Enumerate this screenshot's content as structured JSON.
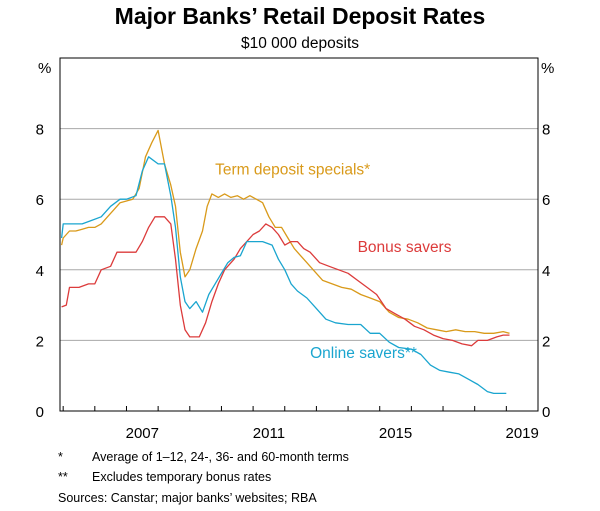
{
  "chart_data": {
    "type": "line",
    "title": "Major Banks’ Retail Deposit Rates",
    "subtitle": "$10 000 deposits",
    "y_unit_left": "%",
    "y_unit_right": "%",
    "xlim": [
      2004.9,
      2020.0
    ],
    "ylim": [
      0,
      10
    ],
    "y_ticks": [
      0,
      2,
      4,
      6,
      8
    ],
    "x_ticks": [
      "2007",
      "2011",
      "2015",
      "2019"
    ],
    "grid": true,
    "series": [
      {
        "name": "Term deposit specials*",
        "color": "#d99a1a",
        "points": [
          [
            2004.95,
            4.7
          ],
          [
            2005.0,
            4.9
          ],
          [
            2005.2,
            5.1
          ],
          [
            2005.4,
            5.1
          ],
          [
            2005.6,
            5.15
          ],
          [
            2005.8,
            5.2
          ],
          [
            2006.0,
            5.2
          ],
          [
            2006.2,
            5.3
          ],
          [
            2006.4,
            5.5
          ],
          [
            2006.6,
            5.7
          ],
          [
            2006.8,
            5.9
          ],
          [
            2007.0,
            5.95
          ],
          [
            2007.2,
            6.0
          ],
          [
            2007.4,
            6.3
          ],
          [
            2007.6,
            7.2
          ],
          [
            2007.8,
            7.6
          ],
          [
            2008.0,
            7.95
          ],
          [
            2008.2,
            7.0
          ],
          [
            2008.4,
            6.4
          ],
          [
            2008.55,
            5.8
          ],
          [
            2008.7,
            4.5
          ],
          [
            2008.85,
            3.8
          ],
          [
            2009.0,
            4.0
          ],
          [
            2009.2,
            4.6
          ],
          [
            2009.4,
            5.1
          ],
          [
            2009.55,
            5.8
          ],
          [
            2009.7,
            6.15
          ],
          [
            2009.9,
            6.05
          ],
          [
            2010.1,
            6.15
          ],
          [
            2010.3,
            6.05
          ],
          [
            2010.5,
            6.1
          ],
          [
            2010.7,
            6.0
          ],
          [
            2010.9,
            6.1
          ],
          [
            2011.1,
            6.0
          ],
          [
            2011.3,
            5.9
          ],
          [
            2011.5,
            5.5
          ],
          [
            2011.7,
            5.2
          ],
          [
            2011.9,
            5.2
          ],
          [
            2012.1,
            4.9
          ],
          [
            2012.3,
            4.6
          ],
          [
            2012.5,
            4.4
          ],
          [
            2012.7,
            4.2
          ],
          [
            2012.9,
            4.0
          ],
          [
            2013.2,
            3.7
          ],
          [
            2013.5,
            3.6
          ],
          [
            2013.8,
            3.5
          ],
          [
            2014.1,
            3.45
          ],
          [
            2014.4,
            3.3
          ],
          [
            2014.7,
            3.2
          ],
          [
            2015.0,
            3.1
          ],
          [
            2015.3,
            2.8
          ],
          [
            2015.6,
            2.65
          ],
          [
            2015.9,
            2.6
          ],
          [
            2016.2,
            2.5
          ],
          [
            2016.5,
            2.35
          ],
          [
            2016.8,
            2.3
          ],
          [
            2017.1,
            2.25
          ],
          [
            2017.4,
            2.3
          ],
          [
            2017.7,
            2.25
          ],
          [
            2018.0,
            2.25
          ],
          [
            2018.3,
            2.2
          ],
          [
            2018.6,
            2.2
          ],
          [
            2018.9,
            2.25
          ],
          [
            2019.1,
            2.2
          ]
        ]
      },
      {
        "name": "Bonus savers",
        "color": "#dc3b3b",
        "points": [
          [
            2004.95,
            2.95
          ],
          [
            2005.1,
            3.0
          ],
          [
            2005.2,
            3.5
          ],
          [
            2005.5,
            3.5
          ],
          [
            2005.8,
            3.6
          ],
          [
            2006.0,
            3.6
          ],
          [
            2006.2,
            4.0
          ],
          [
            2006.5,
            4.1
          ],
          [
            2006.7,
            4.5
          ],
          [
            2007.0,
            4.5
          ],
          [
            2007.3,
            4.5
          ],
          [
            2007.5,
            4.8
          ],
          [
            2007.7,
            5.2
          ],
          [
            2007.9,
            5.5
          ],
          [
            2008.2,
            5.5
          ],
          [
            2008.4,
            5.3
          ],
          [
            2008.55,
            4.3
          ],
          [
            2008.7,
            3.0
          ],
          [
            2008.85,
            2.3
          ],
          [
            2009.0,
            2.1
          ],
          [
            2009.3,
            2.1
          ],
          [
            2009.5,
            2.5
          ],
          [
            2009.7,
            3.1
          ],
          [
            2009.9,
            3.6
          ],
          [
            2010.1,
            4.0
          ],
          [
            2010.4,
            4.3
          ],
          [
            2010.6,
            4.6
          ],
          [
            2010.8,
            4.8
          ],
          [
            2011.0,
            5.0
          ],
          [
            2011.2,
            5.1
          ],
          [
            2011.4,
            5.3
          ],
          [
            2011.6,
            5.2
          ],
          [
            2011.8,
            5.0
          ],
          [
            2012.0,
            4.7
          ],
          [
            2012.2,
            4.8
          ],
          [
            2012.4,
            4.8
          ],
          [
            2012.6,
            4.6
          ],
          [
            2012.8,
            4.5
          ],
          [
            2013.1,
            4.2
          ],
          [
            2013.4,
            4.1
          ],
          [
            2013.7,
            4.0
          ],
          [
            2014.0,
            3.9
          ],
          [
            2014.3,
            3.7
          ],
          [
            2014.6,
            3.5
          ],
          [
            2014.9,
            3.3
          ],
          [
            2015.2,
            2.9
          ],
          [
            2015.5,
            2.75
          ],
          [
            2015.8,
            2.6
          ],
          [
            2016.1,
            2.4
          ],
          [
            2016.4,
            2.3
          ],
          [
            2016.7,
            2.15
          ],
          [
            2017.0,
            2.05
          ],
          [
            2017.3,
            2.0
          ],
          [
            2017.6,
            1.9
          ],
          [
            2017.9,
            1.85
          ],
          [
            2018.1,
            2.0
          ],
          [
            2018.4,
            2.0
          ],
          [
            2018.7,
            2.1
          ],
          [
            2018.9,
            2.15
          ],
          [
            2019.1,
            2.15
          ]
        ]
      },
      {
        "name": "Online savers**",
        "color": "#1aa5cf",
        "points": [
          [
            2004.95,
            4.9
          ],
          [
            2005.0,
            5.3
          ],
          [
            2005.3,
            5.3
          ],
          [
            2005.6,
            5.3
          ],
          [
            2005.9,
            5.4
          ],
          [
            2006.2,
            5.5
          ],
          [
            2006.5,
            5.8
          ],
          [
            2006.8,
            6.0
          ],
          [
            2007.0,
            6.0
          ],
          [
            2007.3,
            6.1
          ],
          [
            2007.5,
            6.8
          ],
          [
            2007.7,
            7.2
          ],
          [
            2008.0,
            7.0
          ],
          [
            2008.2,
            7.0
          ],
          [
            2008.4,
            6.1
          ],
          [
            2008.55,
            5.2
          ],
          [
            2008.7,
            3.8
          ],
          [
            2008.85,
            3.1
          ],
          [
            2009.0,
            2.9
          ],
          [
            2009.2,
            3.1
          ],
          [
            2009.4,
            2.8
          ],
          [
            2009.6,
            3.3
          ],
          [
            2009.8,
            3.6
          ],
          [
            2010.0,
            3.9
          ],
          [
            2010.2,
            4.2
          ],
          [
            2010.4,
            4.35
          ],
          [
            2010.6,
            4.4
          ],
          [
            2010.8,
            4.8
          ],
          [
            2011.0,
            4.8
          ],
          [
            2011.3,
            4.8
          ],
          [
            2011.6,
            4.7
          ],
          [
            2011.8,
            4.3
          ],
          [
            2012.0,
            4.0
          ],
          [
            2012.2,
            3.6
          ],
          [
            2012.4,
            3.4
          ],
          [
            2012.7,
            3.2
          ],
          [
            2013.0,
            2.9
          ],
          [
            2013.3,
            2.6
          ],
          [
            2013.6,
            2.5
          ],
          [
            2014.0,
            2.45
          ],
          [
            2014.4,
            2.45
          ],
          [
            2014.7,
            2.2
          ],
          [
            2015.0,
            2.2
          ],
          [
            2015.3,
            1.95
          ],
          [
            2015.6,
            1.8
          ],
          [
            2016.0,
            1.75
          ],
          [
            2016.3,
            1.6
          ],
          [
            2016.6,
            1.3
          ],
          [
            2016.9,
            1.15
          ],
          [
            2017.2,
            1.1
          ],
          [
            2017.5,
            1.05
          ],
          [
            2017.8,
            0.9
          ],
          [
            2018.1,
            0.75
          ],
          [
            2018.4,
            0.55
          ],
          [
            2018.6,
            0.5
          ],
          [
            2019.0,
            0.5
          ]
        ]
      }
    ],
    "notes": [
      {
        "marker": "*",
        "text": "Average of 1–12, 24-, 36- and 60-month terms"
      },
      {
        "marker": "**",
        "text": "Excludes temporary bonus rates"
      }
    ],
    "sources": "Sources: Canstar; major banks’ websites; RBA"
  }
}
